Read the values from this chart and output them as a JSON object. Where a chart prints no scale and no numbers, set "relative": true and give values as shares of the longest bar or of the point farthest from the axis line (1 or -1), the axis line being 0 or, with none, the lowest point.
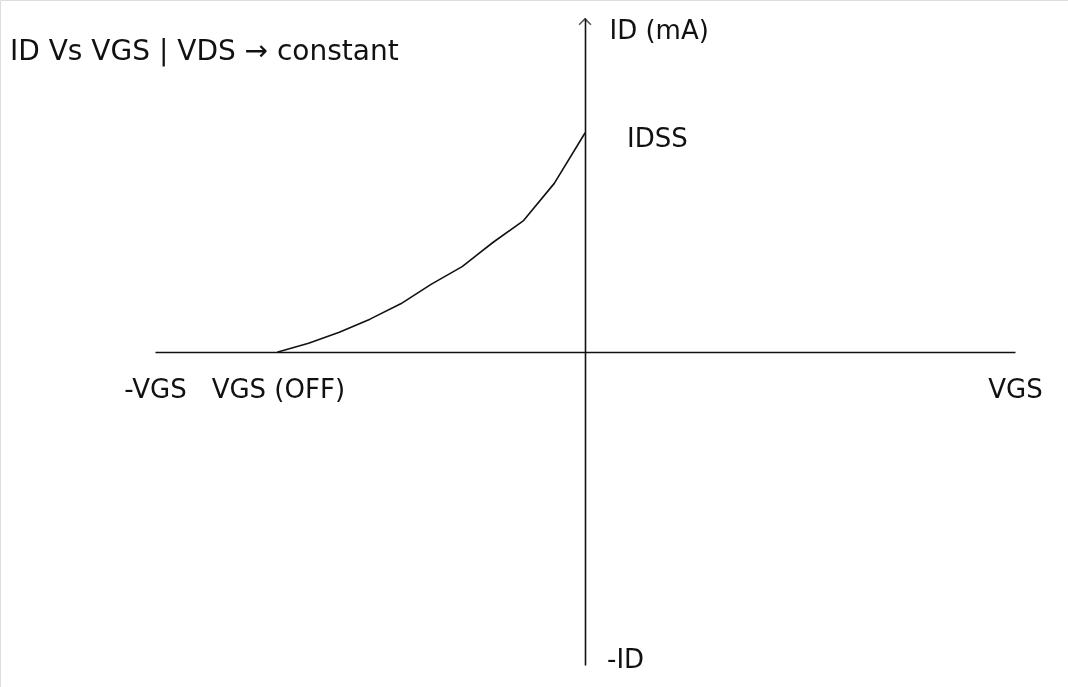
{
  "chart_data": {
    "type": "line",
    "title": "ID Vs VGS | VDS → constant",
    "ylabel": "ID (mA)",
    "relative": true,
    "categories": [
      "-VGS",
      null,
      null,
      null,
      "VGS (OFF)",
      null,
      null,
      null,
      null,
      null,
      null,
      null,
      null,
      null,
      null,
      null,
      null,
      null,
      null,
      null,
      null,
      null,
      null,
      null,
      null,
      null,
      null,
      null,
      "VGS"
    ],
    "series": [
      {
        "color": "#111111",
        "values": [
          null,
          null,
          null,
          null,
          0,
          0.04,
          0.09,
          0.15,
          0.22,
          0.31,
          0.39,
          0.5,
          0.6,
          0.77,
          1,
          null,
          null,
          null,
          null,
          null,
          null,
          null,
          null,
          null,
          null,
          null,
          null,
          null,
          null
        ]
      }
    ],
    "annotations": [
      "IDSS",
      "-ID"
    ]
  }
}
